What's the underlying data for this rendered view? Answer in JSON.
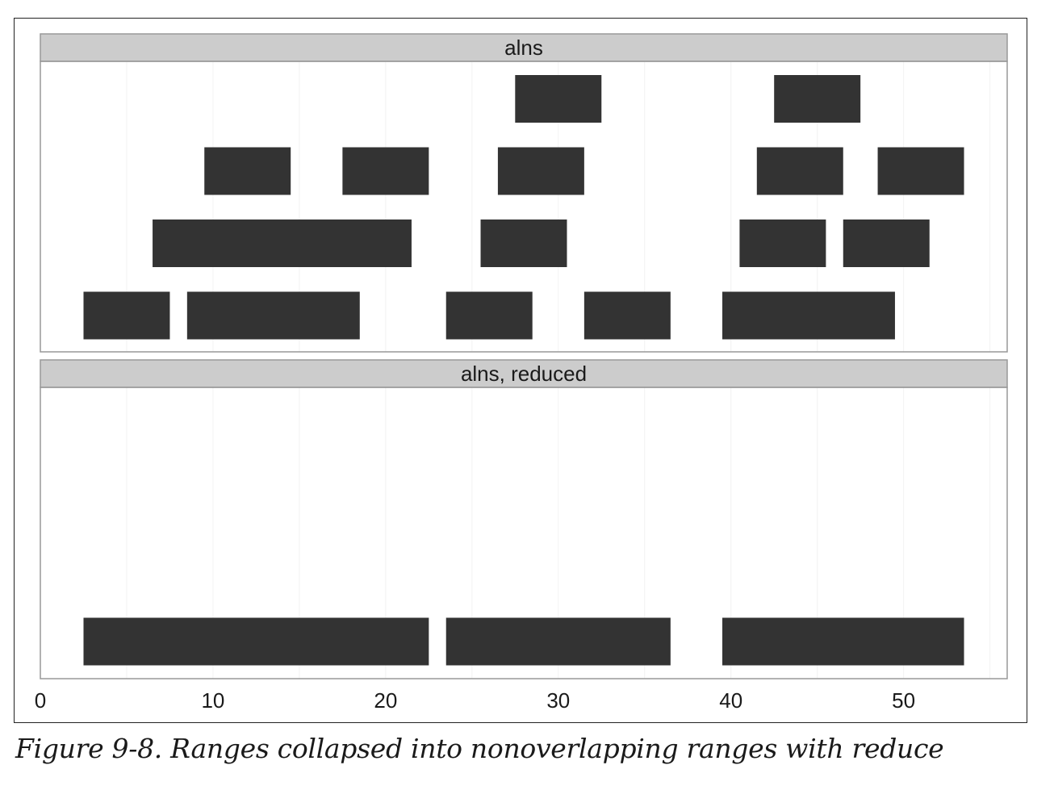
{
  "caption": "Figure 9-8. Ranges collapsed into nonoverlapping ranges with reduce",
  "chart_data": {
    "type": "bar",
    "orientation": "horizontal ranges",
    "x_ticks": [
      0,
      10,
      20,
      30,
      40,
      50
    ],
    "xlim": [
      0,
      56
    ],
    "grid": false,
    "legend": "none",
    "colors": {
      "range_fill": "#333333",
      "strip_fill": "#cccccc",
      "panel_border": "#999999",
      "gridline": "#f2f2f2"
    },
    "panels": [
      {
        "title": "alns",
        "rows": 4,
        "ranges": [
          {
            "start": 27.5,
            "end": 32.5,
            "row": 4
          },
          {
            "start": 42.5,
            "end": 47.5,
            "row": 4
          },
          {
            "start": 9.5,
            "end": 14.5,
            "row": 3
          },
          {
            "start": 17.5,
            "end": 22.5,
            "row": 3
          },
          {
            "start": 26.5,
            "end": 31.5,
            "row": 3
          },
          {
            "start": 41.5,
            "end": 46.5,
            "row": 3
          },
          {
            "start": 48.5,
            "end": 53.5,
            "row": 3
          },
          {
            "start": 6.5,
            "end": 21.5,
            "row": 2
          },
          {
            "start": 25.5,
            "end": 30.5,
            "row": 2
          },
          {
            "start": 40.5,
            "end": 45.5,
            "row": 2
          },
          {
            "start": 46.5,
            "end": 51.5,
            "row": 2
          },
          {
            "start": 2.5,
            "end": 7.5,
            "row": 1
          },
          {
            "start": 8.5,
            "end": 18.5,
            "row": 1
          },
          {
            "start": 23.5,
            "end": 28.5,
            "row": 1
          },
          {
            "start": 31.5,
            "end": 36.5,
            "row": 1
          },
          {
            "start": 39.5,
            "end": 49.5,
            "row": 1
          }
        ]
      },
      {
        "title": "alns, reduced",
        "rows": 4,
        "ranges": [
          {
            "start": 2.5,
            "end": 22.5,
            "row": 1
          },
          {
            "start": 23.5,
            "end": 36.5,
            "row": 1
          },
          {
            "start": 39.5,
            "end": 53.5,
            "row": 1
          }
        ]
      }
    ]
  }
}
